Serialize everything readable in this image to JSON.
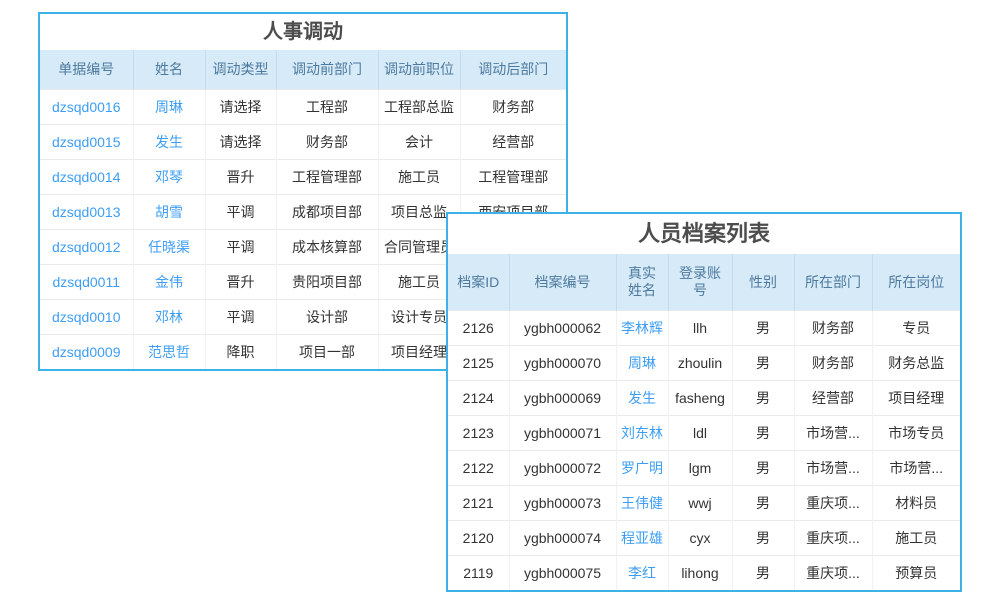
{
  "colors": {
    "card_border": "#3cb2e6",
    "header_bg": "#d7eaf8",
    "header_text": "#4d7a9e",
    "link_text": "#3e9ef5",
    "body_text": "#333333",
    "title_text": "#4d4d4d"
  },
  "transfer_table": {
    "title": "人事调动",
    "columns": [
      "单据编号",
      "姓名",
      "调动类型",
      "调动前部门",
      "调动前职位",
      "调动后部门"
    ],
    "rows": [
      [
        "dzsqd0016",
        "周琳",
        "请选择",
        "工程部",
        "工程部总监",
        "财务部"
      ],
      [
        "dzsqd0015",
        "发生",
        "请选择",
        "财务部",
        "会计",
        "经营部"
      ],
      [
        "dzsqd0014",
        "邓琴",
        "晋升",
        "工程管理部",
        "施工员",
        "工程管理部"
      ],
      [
        "dzsqd0013",
        "胡雪",
        "平调",
        "成都项目部",
        "项目总监",
        "西安项目部"
      ],
      [
        "dzsqd0012",
        "任晓渠",
        "平调",
        "成本核算部",
        "合同管理员",
        ""
      ],
      [
        "dzsqd0011",
        "金伟",
        "晋升",
        "贵阳项目部",
        "施工员",
        ""
      ],
      [
        "dzsqd0010",
        "邓林",
        "平调",
        "设计部",
        "设计专员",
        ""
      ],
      [
        "dzsqd0009",
        "范思哲",
        "降职",
        "项目一部",
        "项目经理",
        ""
      ]
    ]
  },
  "archive_table": {
    "title": "人员档案列表",
    "columns": [
      "档案ID",
      "档案编号",
      "真实姓名",
      "登录账号",
      "性别",
      "所在部门",
      "所在岗位"
    ],
    "rows": [
      [
        "2126",
        "ygbh000062",
        "李林辉",
        "llh",
        "男",
        "财务部",
        "专员"
      ],
      [
        "2125",
        "ygbh000070",
        "周琳",
        "zhoulin",
        "男",
        "财务部",
        "财务总监"
      ],
      [
        "2124",
        "ygbh000069",
        "发生",
        "fasheng",
        "男",
        "经营部",
        "项目经理"
      ],
      [
        "2123",
        "ygbh000071",
        "刘东林",
        "ldl",
        "男",
        "市场营...",
        "市场专员"
      ],
      [
        "2122",
        "ygbh000072",
        "罗广明",
        "lgm",
        "男",
        "市场营...",
        "市场营..."
      ],
      [
        "2121",
        "ygbh000073",
        "王伟健",
        "wwj",
        "男",
        "重庆项...",
        "材料员"
      ],
      [
        "2120",
        "ygbh000074",
        "程亚雄",
        "cyx",
        "男",
        "重庆项...",
        "施工员"
      ],
      [
        "2119",
        "ygbh000075",
        "李红",
        "lihong",
        "男",
        "重庆项...",
        "预算员"
      ]
    ]
  }
}
